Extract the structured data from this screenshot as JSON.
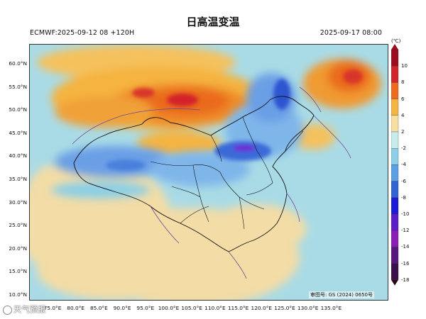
{
  "title": "日高温变温",
  "init_time": "ECMWF:2025-09-12 08 +120H",
  "valid_time": "2025-09-17 08:00",
  "colorbar": {
    "unit": "(℃)",
    "levels": [
      "10",
      "8",
      "6",
      "4",
      "2",
      "-2",
      "-4",
      "-6",
      "-8",
      "-10",
      "-12",
      "-14",
      "-16",
      "-18"
    ],
    "colors": [
      "#9c0e1f",
      "#d4242b",
      "#ef6a1e",
      "#f5b441",
      "#f7dfa0",
      "#c8ecec",
      "#8ccfe6",
      "#5aa0e6",
      "#2f63d4",
      "#1d1bd9",
      "#5c1cc9",
      "#8b1bb8",
      "#5a1680",
      "#3a0f4a",
      "#2a0a10"
    ]
  },
  "lat_labels": [
    "60.0°N",
    "55.0°N",
    "50.0°N",
    "45.0°N",
    "40.0°N",
    "35.0°N",
    "30.0°N",
    "25.0°N",
    "20.0°N",
    "15.0°N",
    "10.0°N"
  ],
  "lon_labels": [
    "75.0°E",
    "80.0°E",
    "85.0°E",
    "90.0°E",
    "95.0°E",
    "100.0°E",
    "105.0°E",
    "110.0°E",
    "115.0°E",
    "120.0°E",
    "125.0°E",
    "130.0°E",
    "135.0°E"
  ],
  "review_number": "审图号: GS (2024) 0650号",
  "watermark": "天气预报"
}
